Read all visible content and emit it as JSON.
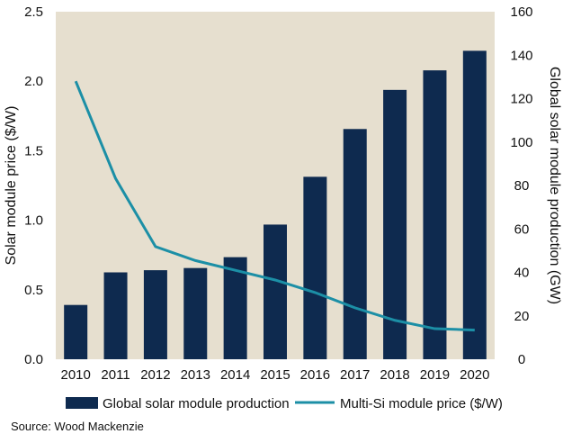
{
  "chart_data": {
    "type": "bar",
    "categories": [
      "2010",
      "2011",
      "2012",
      "2013",
      "2014",
      "2015",
      "2016",
      "2017",
      "2018",
      "2019",
      "2020"
    ],
    "series": [
      {
        "name": "Global solar module production",
        "type": "bar",
        "axis": "right",
        "color": "#0e2a4f",
        "values": [
          25,
          40,
          41,
          42,
          47,
          62,
          84,
          106,
          124,
          133,
          142
        ]
      },
      {
        "name": "Multi-Si module price ($/W)",
        "type": "line",
        "axis": "left",
        "color": "#1c8fa6",
        "values": [
          2.0,
          1.3,
          0.81,
          0.71,
          0.64,
          0.57,
          0.48,
          0.37,
          0.28,
          0.22,
          0.21
        ]
      }
    ],
    "ylabel": "Solar module price ($/W)",
    "ylim": [
      0,
      2.5
    ],
    "y_ticks": [
      "0.0",
      "0.5",
      "1.0",
      "1.5",
      "2.0",
      "2.5"
    ],
    "y2label": "Global solar module production (GW)",
    "y2lim": [
      0,
      160
    ],
    "y2_ticks": [
      "0",
      "20",
      "40",
      "60",
      "80",
      "100",
      "120",
      "140",
      "160"
    ],
    "plot_background": "#e6dfcf",
    "grid": false,
    "legend_position": "bottom"
  },
  "source_note": "Source: Wood Mackenzie"
}
